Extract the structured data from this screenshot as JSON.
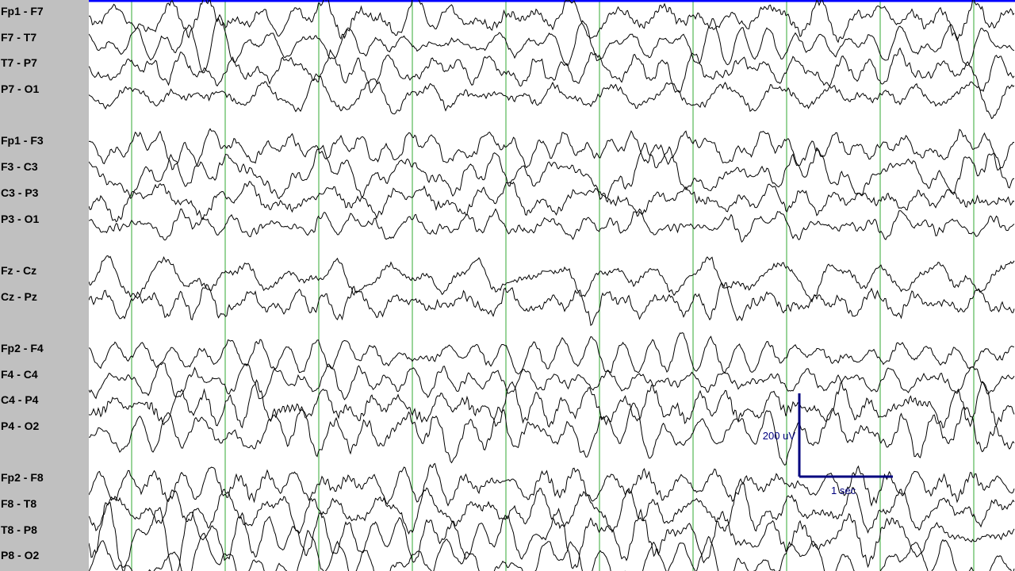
{
  "chart_data": {
    "type": "line",
    "montage": "longitudinal bipolar",
    "channels": [
      {
        "name": "Fp1 - F7",
        "group": 1
      },
      {
        "name": "F7 - T7",
        "group": 1
      },
      {
        "name": "T7 - P7",
        "group": 1
      },
      {
        "name": "P7 - O1",
        "group": 1
      },
      {
        "name": "Fp1 - F3",
        "group": 2
      },
      {
        "name": "F3 - C3",
        "group": 2
      },
      {
        "name": "C3 - P3",
        "group": 2
      },
      {
        "name": "P3 - O1",
        "group": 2
      },
      {
        "name": "Fz - Cz",
        "group": 3
      },
      {
        "name": "Cz - Pz",
        "group": 3
      },
      {
        "name": "Fp2 - F4",
        "group": 4
      },
      {
        "name": "F4 - C4",
        "group": 4
      },
      {
        "name": "C4 - P4",
        "group": 4
      },
      {
        "name": "P4 - O2",
        "group": 4
      },
      {
        "name": "Fp2 - F8",
        "group": 5
      },
      {
        "name": "F8 - T8",
        "group": 5
      },
      {
        "name": "T8 - P8",
        "group": 5
      },
      {
        "name": "P8 - O2",
        "group": 5
      }
    ],
    "time_gridlines_seconds": [
      0,
      1,
      2,
      3,
      4,
      5,
      6,
      7,
      8,
      9
    ],
    "seconds_visible": 9.8,
    "scale_bar": {
      "amplitude_label": "200 uV",
      "amplitude_uv": 200,
      "time_label": "1 sec",
      "time_seconds": 1
    },
    "grid": "vertical second lines",
    "colors": {
      "trace": "#000000",
      "gridline": "#33aa33",
      "top_border": "#0000ff",
      "scale_bar": "#00007f",
      "label_panel": "#c0c0c0"
    }
  }
}
